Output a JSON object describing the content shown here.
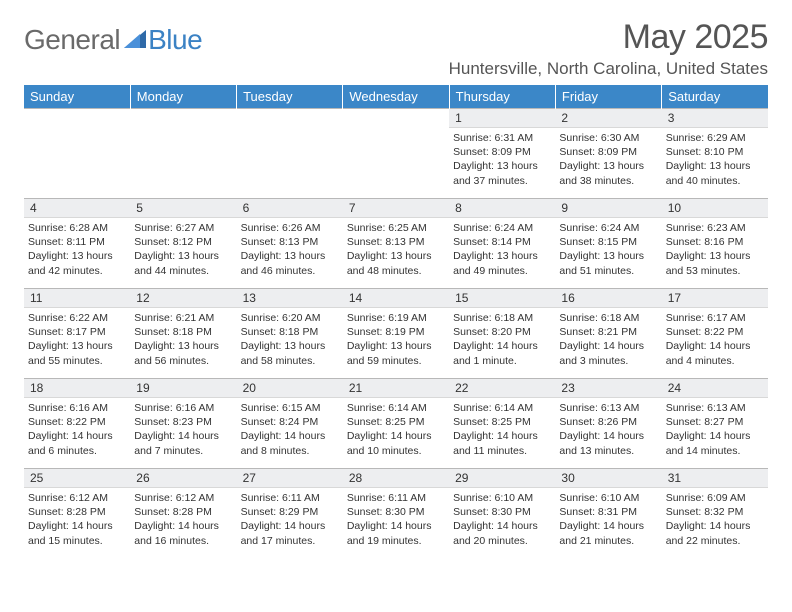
{
  "brand": {
    "general": "General",
    "blue": "Blue"
  },
  "header": {
    "month_title": "May 2025",
    "location": "Huntersville, North Carolina, United States"
  },
  "colors": {
    "header_bg": "#3b87c8",
    "header_text": "#ffffff",
    "daynum_bg": "#edeef0",
    "border": "#b8b8b8",
    "logo_gray": "#6a6a6a",
    "logo_blue": "#3b82c4",
    "text": "#333333"
  },
  "weekdays": [
    "Sunday",
    "Monday",
    "Tuesday",
    "Wednesday",
    "Thursday",
    "Friday",
    "Saturday"
  ],
  "weeks": [
    [
      {
        "day": "",
        "sunrise": "",
        "sunset": "",
        "daylight": ""
      },
      {
        "day": "",
        "sunrise": "",
        "sunset": "",
        "daylight": ""
      },
      {
        "day": "",
        "sunrise": "",
        "sunset": "",
        "daylight": ""
      },
      {
        "day": "",
        "sunrise": "",
        "sunset": "",
        "daylight": ""
      },
      {
        "day": "1",
        "sunrise": "Sunrise: 6:31 AM",
        "sunset": "Sunset: 8:09 PM",
        "daylight": "Daylight: 13 hours and 37 minutes."
      },
      {
        "day": "2",
        "sunrise": "Sunrise: 6:30 AM",
        "sunset": "Sunset: 8:09 PM",
        "daylight": "Daylight: 13 hours and 38 minutes."
      },
      {
        "day": "3",
        "sunrise": "Sunrise: 6:29 AM",
        "sunset": "Sunset: 8:10 PM",
        "daylight": "Daylight: 13 hours and 40 minutes."
      }
    ],
    [
      {
        "day": "4",
        "sunrise": "Sunrise: 6:28 AM",
        "sunset": "Sunset: 8:11 PM",
        "daylight": "Daylight: 13 hours and 42 minutes."
      },
      {
        "day": "5",
        "sunrise": "Sunrise: 6:27 AM",
        "sunset": "Sunset: 8:12 PM",
        "daylight": "Daylight: 13 hours and 44 minutes."
      },
      {
        "day": "6",
        "sunrise": "Sunrise: 6:26 AM",
        "sunset": "Sunset: 8:13 PM",
        "daylight": "Daylight: 13 hours and 46 minutes."
      },
      {
        "day": "7",
        "sunrise": "Sunrise: 6:25 AM",
        "sunset": "Sunset: 8:13 PM",
        "daylight": "Daylight: 13 hours and 48 minutes."
      },
      {
        "day": "8",
        "sunrise": "Sunrise: 6:24 AM",
        "sunset": "Sunset: 8:14 PM",
        "daylight": "Daylight: 13 hours and 49 minutes."
      },
      {
        "day": "9",
        "sunrise": "Sunrise: 6:24 AM",
        "sunset": "Sunset: 8:15 PM",
        "daylight": "Daylight: 13 hours and 51 minutes."
      },
      {
        "day": "10",
        "sunrise": "Sunrise: 6:23 AM",
        "sunset": "Sunset: 8:16 PM",
        "daylight": "Daylight: 13 hours and 53 minutes."
      }
    ],
    [
      {
        "day": "11",
        "sunrise": "Sunrise: 6:22 AM",
        "sunset": "Sunset: 8:17 PM",
        "daylight": "Daylight: 13 hours and 55 minutes."
      },
      {
        "day": "12",
        "sunrise": "Sunrise: 6:21 AM",
        "sunset": "Sunset: 8:18 PM",
        "daylight": "Daylight: 13 hours and 56 minutes."
      },
      {
        "day": "13",
        "sunrise": "Sunrise: 6:20 AM",
        "sunset": "Sunset: 8:18 PM",
        "daylight": "Daylight: 13 hours and 58 minutes."
      },
      {
        "day": "14",
        "sunrise": "Sunrise: 6:19 AM",
        "sunset": "Sunset: 8:19 PM",
        "daylight": "Daylight: 13 hours and 59 minutes."
      },
      {
        "day": "15",
        "sunrise": "Sunrise: 6:18 AM",
        "sunset": "Sunset: 8:20 PM",
        "daylight": "Daylight: 14 hours and 1 minute."
      },
      {
        "day": "16",
        "sunrise": "Sunrise: 6:18 AM",
        "sunset": "Sunset: 8:21 PM",
        "daylight": "Daylight: 14 hours and 3 minutes."
      },
      {
        "day": "17",
        "sunrise": "Sunrise: 6:17 AM",
        "sunset": "Sunset: 8:22 PM",
        "daylight": "Daylight: 14 hours and 4 minutes."
      }
    ],
    [
      {
        "day": "18",
        "sunrise": "Sunrise: 6:16 AM",
        "sunset": "Sunset: 8:22 PM",
        "daylight": "Daylight: 14 hours and 6 minutes."
      },
      {
        "day": "19",
        "sunrise": "Sunrise: 6:16 AM",
        "sunset": "Sunset: 8:23 PM",
        "daylight": "Daylight: 14 hours and 7 minutes."
      },
      {
        "day": "20",
        "sunrise": "Sunrise: 6:15 AM",
        "sunset": "Sunset: 8:24 PM",
        "daylight": "Daylight: 14 hours and 8 minutes."
      },
      {
        "day": "21",
        "sunrise": "Sunrise: 6:14 AM",
        "sunset": "Sunset: 8:25 PM",
        "daylight": "Daylight: 14 hours and 10 minutes."
      },
      {
        "day": "22",
        "sunrise": "Sunrise: 6:14 AM",
        "sunset": "Sunset: 8:25 PM",
        "daylight": "Daylight: 14 hours and 11 minutes."
      },
      {
        "day": "23",
        "sunrise": "Sunrise: 6:13 AM",
        "sunset": "Sunset: 8:26 PM",
        "daylight": "Daylight: 14 hours and 13 minutes."
      },
      {
        "day": "24",
        "sunrise": "Sunrise: 6:13 AM",
        "sunset": "Sunset: 8:27 PM",
        "daylight": "Daylight: 14 hours and 14 minutes."
      }
    ],
    [
      {
        "day": "25",
        "sunrise": "Sunrise: 6:12 AM",
        "sunset": "Sunset: 8:28 PM",
        "daylight": "Daylight: 14 hours and 15 minutes."
      },
      {
        "day": "26",
        "sunrise": "Sunrise: 6:12 AM",
        "sunset": "Sunset: 8:28 PM",
        "daylight": "Daylight: 14 hours and 16 minutes."
      },
      {
        "day": "27",
        "sunrise": "Sunrise: 6:11 AM",
        "sunset": "Sunset: 8:29 PM",
        "daylight": "Daylight: 14 hours and 17 minutes."
      },
      {
        "day": "28",
        "sunrise": "Sunrise: 6:11 AM",
        "sunset": "Sunset: 8:30 PM",
        "daylight": "Daylight: 14 hours and 19 minutes."
      },
      {
        "day": "29",
        "sunrise": "Sunrise: 6:10 AM",
        "sunset": "Sunset: 8:30 PM",
        "daylight": "Daylight: 14 hours and 20 minutes."
      },
      {
        "day": "30",
        "sunrise": "Sunrise: 6:10 AM",
        "sunset": "Sunset: 8:31 PM",
        "daylight": "Daylight: 14 hours and 21 minutes."
      },
      {
        "day": "31",
        "sunrise": "Sunrise: 6:09 AM",
        "sunset": "Sunset: 8:32 PM",
        "daylight": "Daylight: 14 hours and 22 minutes."
      }
    ]
  ]
}
